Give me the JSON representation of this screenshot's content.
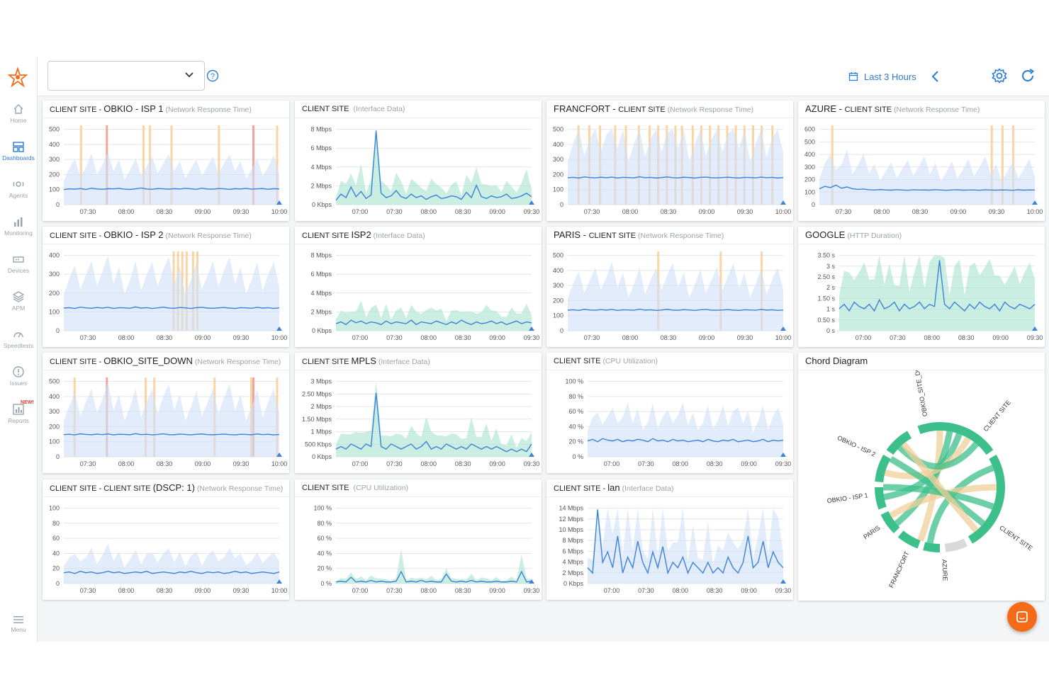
{
  "colors": {
    "accent": "#2a7bd6",
    "orange": "#f56b17",
    "line": "#3b82d8",
    "band": "#cfe0f6",
    "green": "#a9e3cf",
    "alertOrange": "#f7c98f",
    "alertRed": "#ef8e86",
    "chordGreen": "#3cbf8a",
    "chordTan": "#efcf9a"
  },
  "sidebar": {
    "logo_icon": "obkio-logo-icon",
    "items": [
      {
        "label": "Home",
        "icon": "home-icon"
      },
      {
        "label": "Dashboards",
        "icon": "dashboard-icon",
        "active": true
      },
      {
        "label": "Agents",
        "icon": "agents-icon"
      },
      {
        "label": "Monitoring",
        "icon": "monitoring-icon"
      },
      {
        "label": "Devices",
        "icon": "devices-icon"
      },
      {
        "label": "APM",
        "icon": "apm-icon"
      },
      {
        "label": "Speedtests",
        "icon": "speedtests-icon"
      },
      {
        "label": "Issues",
        "icon": "issues-icon"
      },
      {
        "label": "Reports",
        "icon": "reports-icon",
        "badge": "NEW!"
      }
    ],
    "menu_label": "Menu"
  },
  "topbar": {
    "dashboard_select_value": "",
    "time_range_label": "Last 3 Hours"
  },
  "panels": [
    {
      "id": "p1",
      "t1": "CLIENT SITE - ",
      "t2": "OBKIO - ISP 1",
      "t3": "(Network Response Time)"
    },
    {
      "id": "p2",
      "t1": "CLIENT SITE ",
      "t2": "",
      "t3": "(Interface Data)"
    },
    {
      "id": "p3",
      "t1": "",
      "t2": "FRANCFORT - ",
      "t2b": "CLIENT SITE",
      "t3": "(Network Response Time)"
    },
    {
      "id": "p4",
      "t1": "",
      "t2": "AZURE - ",
      "t2b": "CLIENT SITE",
      "t3": "(Network Response Time)"
    },
    {
      "id": "p5",
      "t1": "CLIENT SITE  - ",
      "t2": "OBKIO - ISP 2",
      "t3": "(Network Response Time)"
    },
    {
      "id": "p6",
      "t1": "CLIENT SITE ",
      "t2": "ISP2",
      "t3": "(Interface Data)"
    },
    {
      "id": "p7",
      "t1": "",
      "t2": "PARIS - ",
      "t2b": "CLIENT SITE",
      "t3": "(Network Response Time)"
    },
    {
      "id": "p8",
      "t1": "",
      "t2": "GOOGLE",
      "t3": "(HTTP Duration)"
    },
    {
      "id": "p9",
      "t1": "CLIENT SITE - ",
      "t2": "OBKIO_SITE_DOWN",
      "t3": "(Network Response Time)"
    },
    {
      "id": "p10",
      "t1": "CLIENT SITE ",
      "t2": "MPLS",
      "t3": "(Interface Data)"
    },
    {
      "id": "p11",
      "t1": "CLIENT SITE",
      "t2": "",
      "t3": "(CPU Utilization)"
    },
    {
      "id": "p12",
      "t1": "",
      "t2": "Chord Diagram",
      "t3": ""
    },
    {
      "id": "p13",
      "t1": "CLIENT SITE  -  CLIENT SITE ",
      "t2": "(DSCP: 1)",
      "t3": "(Network Response Time)"
    },
    {
      "id": "p14",
      "t1": "CLIENT SITE ",
      "t2": "",
      "t3": "(CPU Utilization)"
    },
    {
      "id": "p15",
      "t1": "CLIENT SITE - ",
      "t2": "lan",
      "t3": "(Interface Data)"
    }
  ],
  "chart_data": [
    {
      "panel": "p1",
      "type": "line",
      "x_ticks": [
        "07:30",
        "08:00",
        "08:30",
        "09:00",
        "09:30",
        "10:00"
      ],
      "y_ticks": [
        "0",
        "100",
        "200",
        "300",
        "400",
        "500"
      ],
      "ylim": [
        0,
        500
      ],
      "series": [
        {
          "values": [
            95,
            100,
            98,
            102,
            96,
            104,
            99,
            97,
            101,
            100,
            103,
            98,
            96,
            100,
            105,
            99,
            97,
            102,
            100,
            98,
            101,
            99,
            103,
            100,
            97,
            104,
            99,
            98,
            102,
            100,
            97,
            101,
            99,
            103,
            98,
            100,
            102,
            97,
            101,
            99
          ]
        }
      ]
    },
    {
      "panel": "p2",
      "type": "area",
      "x_ticks": [
        "07:00",
        "07:30",
        "08:00",
        "08:30",
        "09:00",
        "09:30"
      ],
      "y_ticks": [
        "0 Kbps",
        "2 Mbps",
        "4 Mbps",
        "6 Mbps",
        "8 Mbps"
      ],
      "ylim": [
        0,
        9
      ],
      "series": [
        {
          "values": [
            0.5,
            1.2,
            0.8,
            2.0,
            0.9,
            1.5,
            0.7,
            1.1,
            8.4,
            1.3,
            0.8,
            1.0,
            1.6,
            0.9,
            0.7,
            1.2,
            0.8,
            1.0,
            0.6,
            0.9,
            1.1,
            0.7,
            0.8,
            1.0,
            0.9,
            0.6,
            1.4,
            0.8,
            2.2,
            0.9,
            0.7,
            1.0,
            0.8,
            0.9,
            1.2,
            0.7,
            0.8,
            1.0,
            1.3,
            0.9
          ]
        }
      ]
    },
    {
      "panel": "p3",
      "type": "line",
      "x_ticks": [
        "07:30",
        "08:00",
        "08:30",
        "09:00",
        "09:30",
        "10:00"
      ],
      "y_ticks": [
        "0",
        "100",
        "200",
        "300",
        "400",
        "500"
      ],
      "ylim": [
        0,
        500
      ],
      "series": [
        {
          "values": [
            170,
            172,
            168,
            175,
            171,
            169,
            173,
            170,
            174,
            168,
            172,
            171,
            169,
            176,
            170,
            172,
            168,
            171,
            175,
            170,
            169,
            173,
            171,
            168,
            172,
            174,
            170,
            169,
            171,
            173,
            170,
            168,
            172,
            171,
            169,
            174,
            170,
            172,
            168,
            171
          ]
        }
      ]
    },
    {
      "panel": "p4",
      "type": "line",
      "x_ticks": [
        "07:30",
        "08:00",
        "08:30",
        "09:00",
        "09:30",
        "10:00"
      ],
      "y_ticks": [
        "0",
        "100",
        "200",
        "300",
        "400",
        "500",
        "600"
      ],
      "ylim": [
        0,
        650
      ],
      "series": [
        {
          "values": [
            130,
            150,
            140,
            160,
            135,
            145,
            130,
            125,
            128,
            122,
            120,
            124,
            121,
            119,
            123,
            120,
            118,
            122,
            120,
            121,
            119,
            123,
            120,
            118,
            121,
            122,
            119,
            120,
            121,
            118,
            122,
            120,
            119,
            121,
            120,
            118,
            122,
            119,
            121,
            120
          ]
        }
      ]
    },
    {
      "panel": "p5",
      "type": "line",
      "x_ticks": [
        "07:30",
        "08:00",
        "08:30",
        "09:00",
        "09:30",
        "10:00"
      ],
      "y_ticks": [
        "0",
        "100",
        "200",
        "300",
        "400"
      ],
      "ylim": [
        0,
        420
      ],
      "series": [
        {
          "values": [
            120,
            122,
            118,
            125,
            121,
            119,
            123,
            120,
            124,
            118,
            122,
            121,
            119,
            126,
            120,
            122,
            118,
            121,
            125,
            120,
            119,
            123,
            121,
            118,
            122,
            124,
            120,
            119,
            121,
            123,
            120,
            118,
            122,
            121,
            119,
            124,
            120,
            122,
            118,
            121
          ]
        }
      ]
    },
    {
      "panel": "p6",
      "type": "area",
      "x_ticks": [
        "07:00",
        "07:30",
        "08:00",
        "08:30",
        "09:00",
        "09:30"
      ],
      "y_ticks": [
        "0 Kbps",
        "2 Mbps",
        "4 Mbps",
        "6 Mbps",
        "8 Mbps"
      ],
      "ylim": [
        0,
        9
      ],
      "series": [
        {
          "values": [
            0.8,
            1.0,
            0.7,
            1.2,
            0.9,
            1.1,
            0.8,
            1.0,
            0.9,
            0.7,
            1.1,
            0.8,
            1.0,
            0.9,
            0.8,
            1.2,
            0.7,
            1.0,
            0.9,
            0.8,
            1.1,
            0.9,
            0.7,
            1.0,
            0.8,
            1.2,
            0.9,
            0.7,
            1.0,
            0.8,
            0.9,
            1.1,
            0.8,
            1.0,
            0.7,
            0.9,
            1.1,
            0.8,
            1.0,
            0.9
          ]
        }
      ]
    },
    {
      "panel": "p7",
      "type": "line",
      "x_ticks": [
        "07:30",
        "08:00",
        "08:30",
        "09:00",
        "09:30",
        "10:00"
      ],
      "y_ticks": [
        "0",
        "100",
        "200",
        "300",
        "400",
        "500"
      ],
      "ylim": [
        0,
        500
      ],
      "series": [
        {
          "values": [
            130,
            132,
            128,
            135,
            131,
            129,
            133,
            130,
            134,
            128,
            132,
            131,
            129,
            136,
            130,
            132,
            128,
            131,
            135,
            130,
            129,
            133,
            131,
            128,
            132,
            134,
            130,
            129,
            131,
            133,
            130,
            128,
            132,
            131,
            129,
            134,
            130,
            132,
            128,
            131
          ]
        }
      ]
    },
    {
      "panel": "p8",
      "type": "area",
      "x_ticks": [
        "07:00",
        "07:30",
        "08:00",
        "08:30",
        "09:00",
        "09:30"
      ],
      "y_ticks": [
        "0 s",
        "0.50 s",
        "1 s",
        "1.50 s",
        "2 s",
        "2.50 s",
        "3 s",
        "3.50 s"
      ],
      "ylim": [
        0,
        3.6
      ],
      "series": [
        {
          "values": [
            1.0,
            1.2,
            0.9,
            1.3,
            1.1,
            1.0,
            1.2,
            0.9,
            1.4,
            1.0,
            1.1,
            1.3,
            0.9,
            1.2,
            1.0,
            1.1,
            1.3,
            1.0,
            1.2,
            1.1,
            3.2,
            1.2,
            1.0,
            1.3,
            1.1,
            0.9,
            1.2,
            1.0,
            1.3,
            1.1,
            1.0,
            1.2,
            0.9,
            1.3,
            1.1,
            1.0,
            1.2,
            1.1,
            1.0,
            1.2
          ]
        }
      ]
    },
    {
      "panel": "p9",
      "type": "line",
      "x_ticks": [
        "07:30",
        "08:00",
        "08:30",
        "09:00",
        "09:30",
        "10:00"
      ],
      "y_ticks": [
        "0",
        "100",
        "200",
        "300",
        "400",
        "500"
      ],
      "ylim": [
        0,
        500
      ],
      "series": [
        {
          "values": [
            140,
            142,
            138,
            145,
            141,
            139,
            143,
            140,
            144,
            138,
            142,
            141,
            139,
            146,
            140,
            142,
            138,
            141,
            145,
            140,
            139,
            143,
            141,
            138,
            142,
            144,
            140,
            139,
            141,
            143,
            140,
            138,
            142,
            141,
            139,
            144,
            140,
            142,
            138,
            141
          ]
        }
      ]
    },
    {
      "panel": "p10",
      "type": "area",
      "x_ticks": [
        "07:00",
        "07:30",
        "08:00",
        "08:30",
        "09:00",
        "09:30"
      ],
      "y_ticks": [
        "0 Kbps",
        "500 Kbps",
        "1 Mbps",
        "1.50 Mbps",
        "2 Mbps",
        "2.50 Mbps",
        "3 Mbps"
      ],
      "ylim": [
        0,
        3.1
      ],
      "series": [
        {
          "values": [
            0.3,
            0.4,
            0.3,
            0.5,
            0.4,
            0.3,
            0.5,
            0.4,
            2.5,
            0.4,
            0.3,
            0.5,
            0.4,
            0.3,
            0.4,
            0.5,
            0.3,
            0.4,
            0.6,
            0.3,
            0.4,
            0.3,
            0.5,
            0.4,
            0.3,
            0.4,
            0.3,
            0.5,
            0.4,
            0.3,
            0.4,
            0.3,
            0.4,
            0.3,
            0.2,
            0.3,
            0.2,
            0.3,
            0.2,
            0.5
          ]
        }
      ]
    },
    {
      "panel": "p11",
      "type": "line",
      "x_ticks": [
        "07:00",
        "07:30",
        "08:00",
        "08:30",
        "09:00",
        "09:30"
      ],
      "y_ticks": [
        "0 %",
        "20 %",
        "40 %",
        "60 %",
        "80 %",
        "100 %"
      ],
      "ylim": [
        0,
        100
      ],
      "series": [
        {
          "values": [
            20,
            22,
            19,
            23,
            21,
            20,
            22,
            19,
            21,
            20,
            22,
            21,
            19,
            23,
            20,
            21,
            19,
            22,
            20,
            21,
            19,
            20,
            21,
            19,
            22,
            20,
            19,
            21,
            20,
            22,
            19,
            20,
            21,
            19,
            20,
            22,
            19,
            21,
            20,
            21
          ]
        }
      ]
    },
    {
      "panel": "p13",
      "type": "line",
      "x_ticks": [
        "07:30",
        "08:00",
        "08:30",
        "09:00",
        "09:30",
        "10:00"
      ],
      "y_ticks": [
        "0",
        "20",
        "40",
        "60",
        "80",
        "100"
      ],
      "ylim": [
        0,
        110
      ],
      "series": [
        {
          "values": [
            15,
            16,
            14,
            17,
            15,
            16,
            14,
            15,
            17,
            15,
            16,
            14,
            15,
            16,
            15,
            17,
            14,
            15,
            16,
            15,
            14,
            16,
            15,
            17,
            15,
            14,
            16,
            15,
            16,
            14,
            15,
            17,
            15,
            16,
            14,
            15,
            16,
            15,
            14,
            16
          ]
        }
      ]
    },
    {
      "panel": "p14",
      "type": "area",
      "x_ticks": [
        "07:00",
        "07:30",
        "08:00",
        "08:30",
        "09:00",
        "09:30"
      ],
      "y_ticks": [
        "0 %",
        "20 %",
        "40 %",
        "60 %",
        "80 %",
        "100 %"
      ],
      "ylim": [
        0,
        100
      ],
      "series": [
        {
          "values": [
            2,
            3,
            2,
            8,
            2,
            3,
            2,
            4,
            2,
            3,
            2,
            2,
            3,
            15,
            2,
            3,
            2,
            4,
            2,
            3,
            2,
            2,
            12,
            3,
            2,
            3,
            2,
            4,
            2,
            3,
            2,
            2,
            3,
            2,
            2,
            3,
            2,
            15,
            2,
            3
          ]
        }
      ]
    },
    {
      "panel": "p15",
      "type": "line",
      "x_ticks": [
        "07:00",
        "07:30",
        "08:00",
        "08:30",
        "09:00",
        "09:30"
      ],
      "y_ticks": [
        "0 Kbps",
        "2 Mbps",
        "4 Mbps",
        "6 Mbps",
        "8 Mbps",
        "10 Mbps",
        "12 Mbps",
        "14 Mbps"
      ],
      "ylim": [
        0,
        15
      ],
      "series": [
        {
          "values": [
            3,
            2,
            14,
            4,
            6,
            3,
            9,
            2,
            5,
            3,
            8,
            4,
            2,
            6,
            3,
            7,
            2,
            4,
            3,
            5,
            2,
            4,
            3,
            2,
            4,
            2,
            3,
            2,
            5,
            3,
            2,
            4,
            9,
            3,
            4,
            8,
            3,
            6,
            4,
            3
          ]
        }
      ]
    },
    {
      "panel": "p12",
      "type": "chord",
      "labels": [
        "OBKIO_SITE_DOWN",
        "CLIENT SITE",
        "CLIENT SITE",
        "AZURE",
        "FRANCFORT",
        "PARIS",
        "OBKIO - ISP 1",
        "OBKIO - ISP 2"
      ]
    }
  ]
}
